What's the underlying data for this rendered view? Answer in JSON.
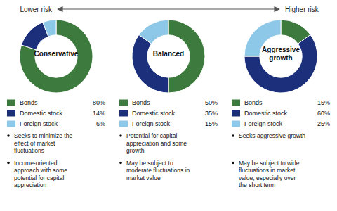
{
  "chart_data": [
    {
      "type": "arrow",
      "annotations": [
        "Lower risk",
        "Higher risk"
      ]
    },
    {
      "type": "pie",
      "title": "Conservative",
      "categories": [
        "Bonds",
        "Domestic stock",
        "Foreign stock"
      ],
      "values": [
        80,
        14,
        6
      ],
      "value_labels": [
        "80%",
        "14%",
        "6%"
      ],
      "colors": [
        "#3d7a3d",
        "#1c2f7a",
        "#8ec8e8"
      ],
      "legend": "bottom",
      "annotations": [
        "Seeks to minimize the\neffect of market\nfluctuations",
        "Income-oriented\napproach with some\npotential for capital\nappreciation"
      ]
    },
    {
      "type": "pie",
      "title": "Balanced",
      "categories": [
        "Bonds",
        "Domestic stock",
        "Foreign stock"
      ],
      "values": [
        50,
        35,
        15
      ],
      "value_labels": [
        "50%",
        "35%",
        "15%"
      ],
      "colors": [
        "#3d7a3d",
        "#1c2f7a",
        "#8ec8e8"
      ],
      "legend": "bottom",
      "annotations": [
        "Potential for capital\nappreciation and some\ngrowth",
        "May be subject to\nmoderate fluctuations in\nmarket value"
      ]
    },
    {
      "type": "pie",
      "title": "Aggressive\ngrowth",
      "categories": [
        "Bonds",
        "Domestic stock",
        "Foreign stock"
      ],
      "values": [
        15,
        60,
        25
      ],
      "value_labels": [
        "15%",
        "60%",
        "25%"
      ],
      "colors": [
        "#3d7a3d",
        "#1c2f7a",
        "#8ec8e8"
      ],
      "legend": "bottom",
      "annotations": [
        "Seeks aggressive growth",
        "May be subject to wide\nfluctuations in market\nvalue, especially over\nthe short term"
      ]
    }
  ]
}
